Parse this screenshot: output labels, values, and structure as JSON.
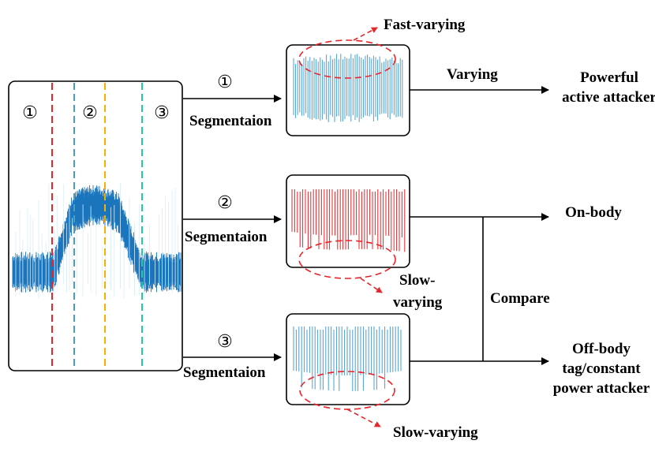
{
  "colors": {
    "signal": "#1a75bc",
    "signal_light": "#4a9fd6",
    "red": "#e8252a",
    "red_dash": "#e8252a",
    "blue_dash": "#4a9ec2",
    "yellow_dash": "#f0b400",
    "teal_dash": "#22c9a8"
  },
  "left_panel": {
    "segment_markers": [
      "①",
      "②",
      "③"
    ]
  },
  "branches": [
    {
      "marker": "①",
      "arrow_label": "Segmentaion",
      "waveform": "fast-varying blue",
      "annotation": "Fast-varying",
      "out_label": "Varying",
      "result_lines": [
        "Powerful",
        "active attacker"
      ]
    },
    {
      "marker": "②",
      "arrow_label": "Segmentaion",
      "waveform": "slow-varying red",
      "annotation_lines": [
        "Slow-",
        "varying"
      ],
      "result_lines": [
        "On-body"
      ]
    },
    {
      "marker": "③",
      "arrow_label": "Segmentaion",
      "waveform": "slow-varying blue",
      "annotation": "Slow-varying",
      "result_lines": [
        "Off-body",
        "tag/constant",
        "power attacker"
      ]
    }
  ],
  "compare_label": "Compare"
}
